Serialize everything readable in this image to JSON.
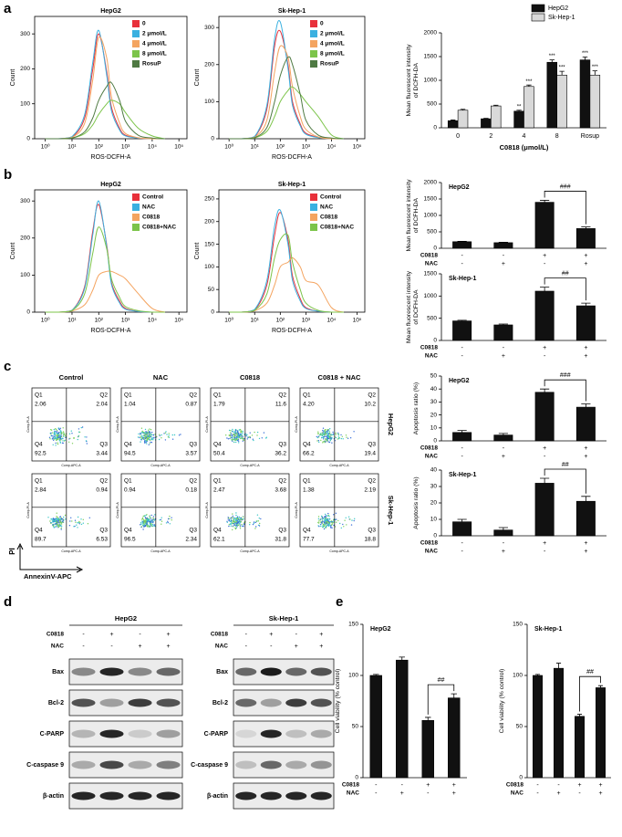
{
  "panel_labels": [
    "a",
    "b",
    "c",
    "d",
    "e"
  ],
  "chart_data": [
    {
      "type": "line",
      "title": "HepG2",
      "xlabel": "ROS-DCFH-A",
      "ylabel": "Count",
      "x_scale": "log",
      "legend": "upper right",
      "x": [
        1,
        3,
        10,
        30,
        60,
        100,
        200,
        300,
        600,
        1000,
        3000,
        10000,
        30000
      ],
      "xlim": [
        0.4,
        200000
      ],
      "ylim": [
        0,
        350
      ],
      "yticks": [
        0,
        100,
        200,
        300
      ],
      "xticks": [
        {
          "value": 1,
          "label": "10⁰"
        },
        {
          "value": 10,
          "label": "10¹"
        },
        {
          "value": 100,
          "label": "10²"
        },
        {
          "value": 1000,
          "label": "10³"
        },
        {
          "value": 10000,
          "label": "10⁴"
        },
        {
          "value": 100000,
          "label": "10⁵"
        }
      ],
      "series": [
        {
          "name": "0",
          "color": "#e8303a",
          "values": [
            0,
            0,
            5,
            60,
            200,
            300,
            190,
            90,
            30,
            10,
            2,
            0,
            0
          ]
        },
        {
          "name": "2 μmol/L",
          "color": "#3ab0e0",
          "values": [
            0,
            0,
            6,
            70,
            220,
            310,
            180,
            80,
            25,
            8,
            2,
            0,
            0
          ]
        },
        {
          "name": "4 μmol/L",
          "color": "#f4a460",
          "values": [
            0,
            0,
            4,
            45,
            170,
            290,
            230,
            120,
            45,
            15,
            3,
            0,
            0
          ]
        },
        {
          "name": "8 μmol/L",
          "color": "#7cc44a",
          "values": [
            0,
            0,
            2,
            15,
            40,
            70,
            100,
            110,
            100,
            75,
            30,
            8,
            0
          ]
        },
        {
          "name": "RosuP",
          "color": "#4f7a43",
          "values": [
            0,
            0,
            2,
            20,
            60,
            110,
            150,
            160,
            110,
            50,
            10,
            2,
            0
          ]
        }
      ]
    },
    {
      "type": "line",
      "title": "Sk-Hep-1",
      "xlabel": "ROS-DCFH-A",
      "ylabel": "Count",
      "x_scale": "log",
      "legend": "upper right",
      "x": [
        1,
        3,
        10,
        30,
        60,
        100,
        200,
        300,
        600,
        1000,
        3000,
        10000,
        30000
      ],
      "xlim": [
        0.4,
        200000
      ],
      "ylim": [
        0,
        330
      ],
      "yticks": [
        0,
        100,
        200,
        300
      ],
      "xticks": [
        {
          "value": 1,
          "label": "10⁰"
        },
        {
          "value": 10,
          "label": "10¹"
        },
        {
          "value": 100,
          "label": "10²"
        },
        {
          "value": 1000,
          "label": "10³"
        },
        {
          "value": 10000,
          "label": "10⁴"
        },
        {
          "value": 100000,
          "label": "10⁵"
        }
      ],
      "series": [
        {
          "name": "0",
          "color": "#e8303a",
          "values": [
            0,
            0,
            5,
            80,
            250,
            290,
            200,
            100,
            40,
            15,
            4,
            0,
            0
          ]
        },
        {
          "name": "2 μmol/L",
          "color": "#3ab0e0",
          "values": [
            0,
            0,
            6,
            90,
            270,
            315,
            190,
            90,
            35,
            12,
            3,
            0,
            0
          ]
        },
        {
          "name": "4 μmol/L",
          "color": "#f4a460",
          "values": [
            0,
            0,
            4,
            50,
            180,
            250,
            220,
            140,
            60,
            25,
            5,
            0,
            0
          ]
        },
        {
          "name": "8 μmol/L",
          "color": "#7cc44a",
          "values": [
            0,
            0,
            2,
            20,
            60,
            100,
            130,
            140,
            120,
            100,
            60,
            10,
            0
          ]
        },
        {
          "name": "RosuP",
          "color": "#4f7a43",
          "values": [
            0,
            0,
            3,
            30,
            100,
            170,
            220,
            200,
            120,
            50,
            10,
            2,
            0
          ]
        }
      ]
    },
    {
      "type": "bar",
      "categories": [
        "0",
        "2",
        "4",
        "8",
        "Rosup"
      ],
      "xlabel": "C0818 (μmol/L)",
      "ylabel": [
        "Mean fluorescent intensity",
        "of DCFH-DA"
      ],
      "legend": "upper right",
      "ylim": [
        0,
        2000
      ],
      "yticks": [
        0,
        500,
        1000,
        1500,
        2000
      ],
      "series": [
        {
          "name": "HepG2",
          "color": "#111111",
          "values": [
            150,
            190,
            350,
            1380,
            1430
          ],
          "errors": [
            15,
            10,
            20,
            50,
            60
          ],
          "annotations": [
            null,
            null,
            "**",
            "***",
            "***"
          ]
        },
        {
          "name": "Sk-Hep-1",
          "color": "#d9d9d9",
          "values": [
            370,
            460,
            870,
            1110,
            1110
          ],
          "errors": [
            20,
            15,
            30,
            80,
            90
          ],
          "annotations": [
            null,
            null,
            "***",
            "***",
            "***"
          ]
        }
      ]
    },
    {
      "type": "line",
      "title": "HepG2",
      "xlabel": "ROS-DCFH-A",
      "ylabel": "Count",
      "x_scale": "log",
      "legend": "upper right",
      "x": [
        1,
        3,
        10,
        30,
        60,
        100,
        200,
        300,
        600,
        1000,
        3000,
        10000,
        30000
      ],
      "xlim": [
        0.4,
        200000
      ],
      "ylim": [
        0,
        330
      ],
      "yticks": [
        0,
        100,
        200,
        300
      ],
      "xticks": [
        {
          "value": 1,
          "label": "10⁰"
        },
        {
          "value": 10,
          "label": "10¹"
        },
        {
          "value": 100,
          "label": "10²"
        },
        {
          "value": 1000,
          "label": "10³"
        },
        {
          "value": 10000,
          "label": "10⁴"
        },
        {
          "value": 100000,
          "label": "10⁵"
        }
      ],
      "series": [
        {
          "name": "Control",
          "color": "#e8303a",
          "values": [
            0,
            0,
            5,
            70,
            220,
            290,
            180,
            80,
            30,
            10,
            2,
            0,
            0
          ]
        },
        {
          "name": "NAC",
          "color": "#3ab0e0",
          "values": [
            0,
            0,
            5,
            65,
            210,
            300,
            175,
            75,
            25,
            8,
            2,
            0,
            0
          ]
        },
        {
          "name": "C0818",
          "color": "#f4a460",
          "values": [
            0,
            0,
            3,
            20,
            60,
            100,
            110,
            110,
            100,
            90,
            50,
            10,
            0
          ]
        },
        {
          "name": "C0818+NAC",
          "color": "#7cc44a",
          "values": [
            0,
            0,
            4,
            50,
            160,
            230,
            170,
            90,
            40,
            15,
            4,
            0,
            0
          ]
        }
      ]
    },
    {
      "type": "line",
      "title": "Sk-Hep-1",
      "xlabel": "ROS-DCFH-A",
      "ylabel": "Count",
      "x_scale": "log",
      "legend": "upper right",
      "x": [
        1,
        3,
        10,
        30,
        60,
        100,
        200,
        300,
        600,
        1000,
        3000,
        10000,
        30000
      ],
      "xlim": [
        0.4,
        200000
      ],
      "ylim": [
        0,
        270
      ],
      "yticks": [
        0,
        50,
        100,
        150,
        200,
        250
      ],
      "xticks": [
        {
          "value": 1,
          "label": "10⁰"
        },
        {
          "value": 10,
          "label": "10¹"
        },
        {
          "value": 100,
          "label": "10²"
        },
        {
          "value": 1000,
          "label": "10³"
        },
        {
          "value": 10000,
          "label": "10⁴"
        },
        {
          "value": 100000,
          "label": "10⁵"
        }
      ],
      "series": [
        {
          "name": "Control",
          "color": "#e8303a",
          "values": [
            0,
            0,
            5,
            60,
            170,
            220,
            160,
            80,
            30,
            10,
            2,
            0,
            0
          ]
        },
        {
          "name": "NAC",
          "color": "#3ab0e0",
          "values": [
            0,
            0,
            6,
            70,
            190,
            225,
            150,
            70,
            25,
            8,
            2,
            0,
            0
          ]
        },
        {
          "name": "C0818",
          "color": "#f4a460",
          "values": [
            0,
            0,
            3,
            20,
            60,
            100,
            110,
            120,
            100,
            70,
            60,
            10,
            0
          ]
        },
        {
          "name": "C0818+NAC",
          "color": "#7cc44a",
          "values": [
            0,
            0,
            4,
            40,
            120,
            160,
            170,
            110,
            50,
            20,
            4,
            0,
            0
          ]
        }
      ]
    },
    {
      "type": "bar",
      "title": "HepG2",
      "ylabel": [
        "Mean fluorescent intensity",
        "of DCFH-DA"
      ],
      "color": "#111111",
      "categories": [
        null,
        null,
        null,
        null
      ],
      "values": [
        200,
        170,
        1400,
        600
      ],
      "errors": [
        10,
        15,
        60,
        50
      ],
      "ylim": [
        0,
        2000
      ],
      "yticks": [
        0,
        500,
        1000,
        1500,
        2000
      ],
      "significance": "###",
      "treatment_rows": [
        {
          "name": "C0818",
          "signs": [
            "-",
            "-",
            "+",
            "+"
          ]
        },
        {
          "name": "NAC",
          "signs": [
            "-",
            "+",
            "-",
            "+"
          ]
        }
      ]
    },
    {
      "type": "bar",
      "title": "Sk-Hep-1",
      "ylabel": [
        "Mean fluorescent intensity",
        "of DCFH-DA"
      ],
      "color": "#111111",
      "categories": [
        null,
        null,
        null,
        null
      ],
      "values": [
        440,
        350,
        1110,
        780
      ],
      "errors": [
        15,
        20,
        90,
        60
      ],
      "ylim": [
        0,
        1500
      ],
      "yticks": [
        0,
        500,
        1000,
        1500
      ],
      "significance": "##",
      "treatment_rows": [
        {
          "name": "C0818",
          "signs": [
            "-",
            "-",
            "+",
            "+"
          ]
        },
        {
          "name": "NAC",
          "signs": [
            "-",
            "+",
            "-",
            "+"
          ]
        }
      ]
    },
    {
      "type": "bar",
      "title": "HepG2",
      "ylabel": "Apoptosis ratio (%)",
      "color": "#111111",
      "categories": [
        null,
        null,
        null,
        null
      ],
      "values": [
        6.5,
        4.5,
        37.5,
        26
      ],
      "errors": [
        1.5,
        1.2,
        2.5,
        2.5
      ],
      "ylim": [
        0,
        50
      ],
      "yticks": [
        0,
        10,
        20,
        30,
        40,
        50
      ],
      "significance": "###",
      "treatment_rows": [
        {
          "name": "C0818",
          "signs": [
            "-",
            "-",
            "+",
            "+"
          ]
        },
        {
          "name": "NAC",
          "signs": [
            "-",
            "+",
            "-",
            "+"
          ]
        }
      ]
    },
    {
      "type": "bar",
      "title": "Sk-Hep-1",
      "ylabel": "Apoptosis ratio (%)",
      "color": "#111111",
      "categories": [
        null,
        null,
        null,
        null
      ],
      "values": [
        8.5,
        3.5,
        32,
        21
      ],
      "errors": [
        1.5,
        1.5,
        3,
        3
      ],
      "ylim": [
        0,
        40
      ],
      "yticks": [
        0,
        10,
        20,
        30,
        40
      ],
      "significance": "##",
      "treatment_rows": [
        {
          "name": "C0818",
          "signs": [
            "-",
            "-",
            "+",
            "+"
          ]
        },
        {
          "name": "NAC",
          "signs": [
            "-",
            "+",
            "-",
            "+"
          ]
        }
      ]
    },
    {
      "type": "bar",
      "title": "HepG2",
      "ylabel": "Cell viability (% control)",
      "color": "#111111",
      "categories": [
        null,
        null,
        null,
        null
      ],
      "values": [
        100,
        115,
        56,
        78
      ],
      "errors": [
        1,
        3,
        3,
        4
      ],
      "ylim": [
        0,
        150
      ],
      "yticks": [
        0,
        50,
        100,
        150
      ],
      "significance": "##",
      "treatment_rows": [
        {
          "name": "C0818",
          "signs": [
            "-",
            "-",
            "+",
            "+"
          ]
        },
        {
          "name": "NAC",
          "signs": [
            "-",
            "+",
            "-",
            "+"
          ]
        }
      ]
    },
    {
      "type": "bar",
      "title": "Sk-Hep-1",
      "ylabel": "Cell viability (% control)",
      "color": "#111111",
      "categories": [
        null,
        null,
        null,
        null
      ],
      "values": [
        100,
        107,
        60,
        88
      ],
      "errors": [
        1,
        5,
        2,
        2
      ],
      "ylim": [
        0,
        150
      ],
      "yticks": [
        0,
        50,
        100,
        150
      ],
      "significance": "##",
      "treatment_rows": [
        {
          "name": "C0818",
          "signs": [
            "-",
            "-",
            "+",
            "+"
          ]
        },
        {
          "name": "NAC",
          "signs": [
            "-",
            "+",
            "-",
            "+"
          ]
        }
      ]
    }
  ],
  "apoptosis_plots": {
    "columns": [
      "Control",
      "NAC",
      "C0818",
      "C0818 + NAC"
    ],
    "quadrant_names": [
      "Q1",
      "Q2",
      "Q3",
      "Q4"
    ],
    "plot_x_label": "Comp-APC-A",
    "plot_y_label": "Comp-PI-A",
    "y_axis": "PI",
    "x_axis": "AnnexinV-APC",
    "rows": [
      {
        "name": "HepG2",
        "plots": [
          [
            "2.06",
            "2.04",
            "3.44",
            "92.5"
          ],
          [
            "1.04",
            "0.87",
            "3.57",
            "94.5"
          ],
          [
            "1.79",
            "11.6",
            "36.2",
            "50.4"
          ],
          [
            "4.20",
            "10.2",
            "19.4",
            "66.2"
          ]
        ]
      },
      {
        "name": "Sk-Hep-1",
        "plots": [
          [
            "2.84",
            "0.94",
            "6.53",
            "89.7"
          ],
          [
            "0.94",
            "0.18",
            "2.34",
            "96.5"
          ],
          [
            "2.47",
            "3.68",
            "31.8",
            "62.1"
          ],
          [
            "1.38",
            "2.19",
            "18.8",
            "77.7"
          ]
        ]
      }
    ]
  },
  "western_blot": [
    {
      "name": "HepG2",
      "treatments": [
        {
          "name": "C0818",
          "signs": [
            "-",
            "+",
            "-",
            "+"
          ]
        },
        {
          "name": "NAC",
          "signs": [
            "-",
            "-",
            "+",
            "+"
          ]
        }
      ],
      "proteins": [
        "Bax",
        "Bcl-2",
        "C-PARP",
        "C-caspase 9",
        "β-actin"
      ]
    },
    {
      "name": "Sk-Hep-1",
      "treatments": [
        {
          "name": "C0818",
          "signs": [
            "-",
            "+",
            "-",
            "+"
          ]
        },
        {
          "name": "NAC",
          "signs": [
            "-",
            "-",
            "+",
            "+"
          ]
        }
      ],
      "proteins": [
        "Bax",
        "Bcl-2",
        "C-PARP",
        "C-caspase 9",
        "β-actin"
      ]
    }
  ]
}
